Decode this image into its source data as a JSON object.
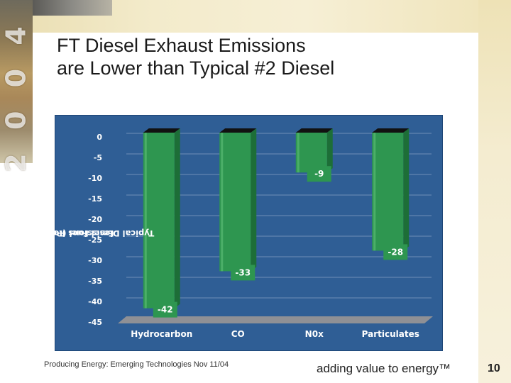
{
  "slide": {
    "year_watermark": "2 0 0 4",
    "title_line1": "FT Diesel Exhaust Emissions",
    "title_line2": "are Lower than Typical #2 Diesel",
    "footer_left": "Producing Energy: Emerging Technologies   Nov 11/04",
    "footer_tagline": "adding value to energy™",
    "page_number": "10"
  },
  "chart_data": {
    "type": "bar",
    "title": "",
    "xlabel": "",
    "ylabel_line1": "Emissions Relative to a",
    "ylabel_line2": "Typical Diesel Fuel (Percentage)",
    "categories": [
      "Hydrocarbon",
      "CO",
      "N0x",
      "Particulates"
    ],
    "values": [
      -42,
      -33,
      -9,
      -28
    ],
    "value_labels": [
      "-42",
      "-33",
      "-9",
      "-28"
    ],
    "yticks": [
      0,
      -5,
      -10,
      -15,
      -20,
      -25,
      -30,
      -35,
      -40,
      -45
    ],
    "ylim": [
      -45,
      0
    ],
    "grid": true,
    "colors": {
      "panel": "#2f5e95",
      "bar": "#2e9650",
      "bar_light": "#5fbf78",
      "bar_dark": "#1d6e37",
      "grid": "#6f8fb8",
      "floor": "#8f9095"
    }
  }
}
